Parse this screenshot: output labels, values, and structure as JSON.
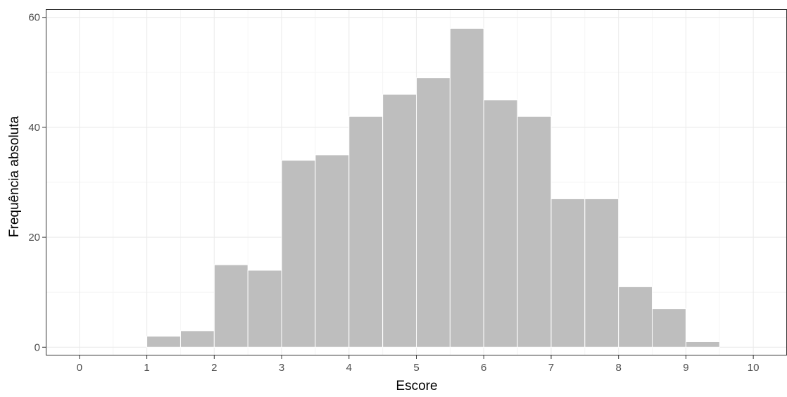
{
  "chart_data": {
    "type": "histogram",
    "title": "",
    "xlabel": "Escore",
    "ylabel": "Frequência absoluta",
    "bin_width": 0.5,
    "bins": [
      {
        "start": 1.0,
        "end": 1.5,
        "count": 2
      },
      {
        "start": 1.5,
        "end": 2.0,
        "count": 3
      },
      {
        "start": 2.0,
        "end": 2.5,
        "count": 15
      },
      {
        "start": 2.5,
        "end": 3.0,
        "count": 14
      },
      {
        "start": 3.0,
        "end": 3.5,
        "count": 34
      },
      {
        "start": 3.5,
        "end": 4.0,
        "count": 35
      },
      {
        "start": 4.0,
        "end": 4.5,
        "count": 42
      },
      {
        "start": 4.5,
        "end": 5.0,
        "count": 46
      },
      {
        "start": 5.0,
        "end": 5.5,
        "count": 49
      },
      {
        "start": 5.5,
        "end": 6.0,
        "count": 58
      },
      {
        "start": 6.0,
        "end": 6.5,
        "count": 45
      },
      {
        "start": 6.5,
        "end": 7.0,
        "count": 42
      },
      {
        "start": 7.0,
        "end": 7.5,
        "count": 27
      },
      {
        "start": 7.5,
        "end": 8.0,
        "count": 27
      },
      {
        "start": 8.0,
        "end": 8.5,
        "count": 11
      },
      {
        "start": 8.5,
        "end": 9.0,
        "count": 7
      },
      {
        "start": 9.0,
        "end": 9.5,
        "count": 1
      }
    ],
    "xlim": [
      -0.5,
      10.5
    ],
    "ylim": [
      -1.5,
      61.5
    ],
    "xticks": [
      0,
      1,
      2,
      3,
      4,
      5,
      6,
      7,
      8,
      9,
      10
    ],
    "xtick_labels": [
      "0",
      "1",
      "2",
      "3",
      "4",
      "5",
      "6",
      "7",
      "8",
      "9",
      "10"
    ],
    "yticks": [
      0,
      20,
      40,
      60
    ],
    "ytick_labels": [
      "0",
      "20",
      "40",
      "60"
    ],
    "grid": true,
    "colors": {
      "bar_fill": "#bebebe",
      "bar_stroke": "#ffffff",
      "grid_major": "#ebebeb",
      "grid_minor": "#f5f5f5",
      "panel_border": "#333333",
      "tick_text": "#4d4d4d",
      "axis_title": "#000000"
    }
  }
}
